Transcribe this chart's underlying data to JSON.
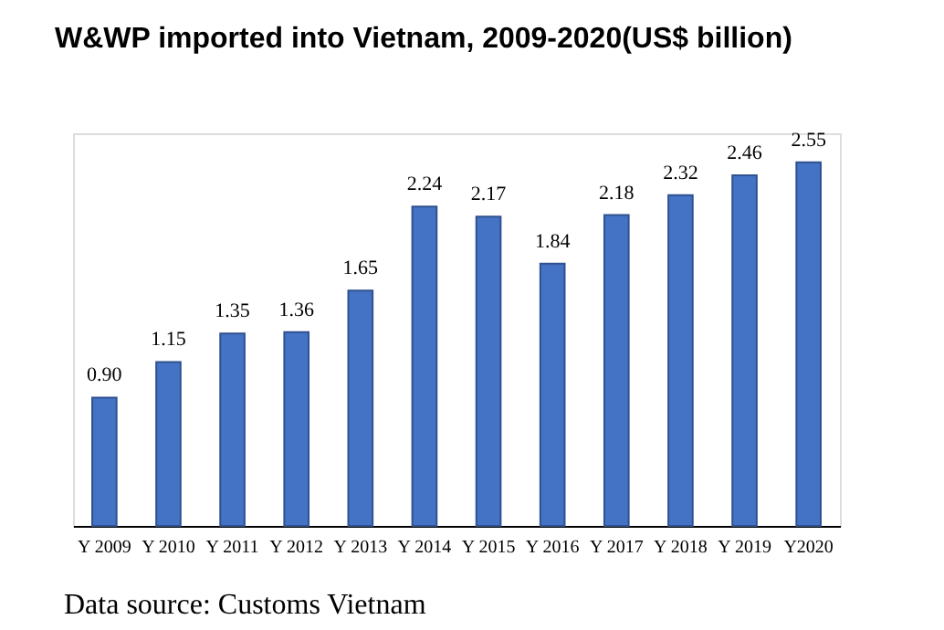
{
  "chart_data": {
    "type": "bar",
    "title": "W&WP imported into Vietnam, 2009-2020(US$ billion)",
    "categories": [
      "Y 2009",
      "Y 2010",
      "Y 2011",
      "Y 2012",
      "Y 2013",
      "Y 2014",
      "Y 2015",
      "Y 2016",
      "Y 2017",
      "Y 2018",
      "Y 2019",
      "Y2020"
    ],
    "values": [
      0.9,
      1.15,
      1.35,
      1.36,
      1.65,
      2.24,
      2.17,
      1.84,
      2.18,
      2.32,
      2.46,
      2.55
    ],
    "value_labels": [
      "0.90",
      "1.15",
      "1.35",
      "1.36",
      "1.65",
      "2.24",
      "2.17",
      "1.84",
      "2.18",
      "2.32",
      "2.46",
      "2.55"
    ],
    "color": "#4472c4",
    "annotations": [
      "Data source: Customs Vietnam"
    ]
  }
}
